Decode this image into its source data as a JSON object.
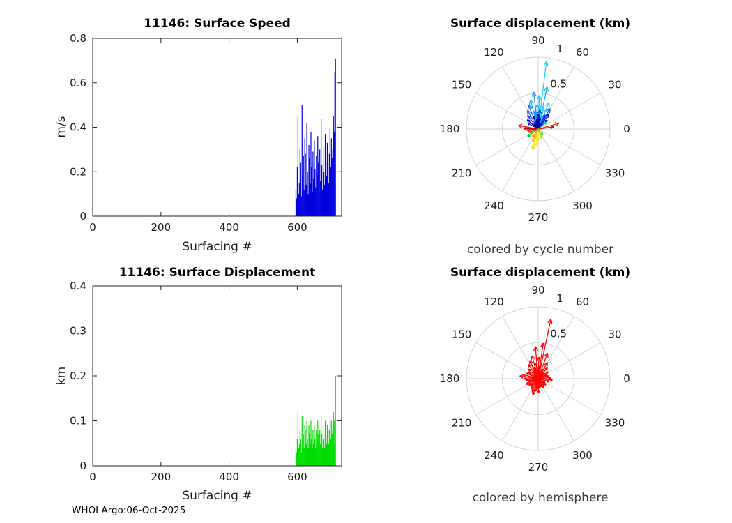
{
  "footer_text": "WHOI Argo:06-Oct-2025",
  "chart_data": [
    {
      "id": "speed",
      "type": "bar",
      "title": "11146: Surface Speed",
      "xlabel": "Surfacing #",
      "ylabel": "m/s",
      "xlim": [
        0,
        730
      ],
      "ylim": [
        0,
        0.8
      ],
      "xticks": [
        0,
        200,
        400,
        600
      ],
      "yticks": [
        0,
        0.2,
        0.4,
        0.6,
        0.8
      ],
      "grid": false,
      "bar_color": "#0000e0",
      "x": [
        596,
        598,
        600,
        602,
        604,
        606,
        608,
        610,
        612,
        614,
        616,
        618,
        620,
        622,
        624,
        626,
        628,
        630,
        632,
        634,
        636,
        638,
        640,
        642,
        644,
        646,
        648,
        650,
        652,
        654,
        656,
        658,
        660,
        662,
        664,
        666,
        668,
        670,
        672,
        674,
        676,
        678,
        680,
        682,
        684,
        686,
        688,
        690,
        692,
        694,
        696,
        698,
        700,
        702,
        704,
        706,
        708,
        710,
        712
      ],
      "values": [
        0.12,
        0.08,
        0.22,
        0.45,
        0.1,
        0.15,
        0.3,
        0.24,
        0.09,
        0.5,
        0.18,
        0.27,
        0.12,
        0.35,
        0.28,
        0.14,
        0.42,
        0.2,
        0.1,
        0.32,
        0.26,
        0.15,
        0.38,
        0.22,
        0.11,
        0.29,
        0.17,
        0.34,
        0.21,
        0.13,
        0.27,
        0.19,
        0.36,
        0.24,
        0.1,
        0.3,
        0.16,
        0.44,
        0.23,
        0.12,
        0.31,
        0.2,
        0.14,
        0.37,
        0.25,
        0.18,
        0.33,
        0.21,
        0.15,
        0.28,
        0.4,
        0.22,
        0.35,
        0.26,
        0.3,
        0.45,
        0.38,
        0.65,
        0.71
      ]
    },
    {
      "id": "disp",
      "type": "bar",
      "title": "11146: Surface Displacement",
      "xlabel": "Surfacing #",
      "ylabel": "km",
      "xlim": [
        0,
        730
      ],
      "ylim": [
        0,
        0.4
      ],
      "xticks": [
        0,
        200,
        400,
        600
      ],
      "yticks": [
        0,
        0.1,
        0.2,
        0.3,
        0.4
      ],
      "grid": false,
      "bar_color": "#00dd00",
      "x": [
        596,
        598,
        600,
        602,
        604,
        606,
        608,
        610,
        612,
        614,
        616,
        618,
        620,
        622,
        624,
        626,
        628,
        630,
        632,
        634,
        636,
        638,
        640,
        642,
        644,
        646,
        648,
        650,
        652,
        654,
        656,
        658,
        660,
        662,
        664,
        666,
        668,
        670,
        672,
        674,
        676,
        678,
        680,
        682,
        684,
        686,
        688,
        690,
        692,
        694,
        696,
        698,
        700,
        702,
        704,
        706,
        708,
        710,
        712
      ],
      "values": [
        0.04,
        0.03,
        0.06,
        0.12,
        0.04,
        0.05,
        0.08,
        0.06,
        0.03,
        0.11,
        0.05,
        0.07,
        0.04,
        0.09,
        0.08,
        0.05,
        0.1,
        0.06,
        0.04,
        0.09,
        0.07,
        0.05,
        0.1,
        0.06,
        0.04,
        0.08,
        0.05,
        0.09,
        0.06,
        0.04,
        0.08,
        0.06,
        0.1,
        0.07,
        0.03,
        0.08,
        0.05,
        0.11,
        0.07,
        0.04,
        0.09,
        0.06,
        0.04,
        0.1,
        0.07,
        0.05,
        0.09,
        0.06,
        0.05,
        0.08,
        0.11,
        0.06,
        0.1,
        0.07,
        0.08,
        0.12,
        0.1,
        0.05,
        0.2
      ]
    },
    {
      "id": "polar_cycle",
      "type": "polar_quiver",
      "title": "Surface displacement (km)",
      "caption": "colored by cycle number",
      "thetaticks": [
        0,
        30,
        60,
        90,
        120,
        150,
        180,
        210,
        240,
        270,
        300,
        330
      ],
      "rticks": [
        0.5,
        1
      ],
      "rlim": [
        0,
        1
      ],
      "colormap": "jet",
      "arrows": [
        [
          83,
          0.95,
          "#29c8ff"
        ],
        [
          78,
          0.6,
          "#00b4f5"
        ],
        [
          97,
          0.52,
          "#1e90ff"
        ],
        [
          88,
          0.47,
          "#00d0ff"
        ],
        [
          105,
          0.42,
          "#2ba9ff"
        ],
        [
          68,
          0.4,
          "#00e4ff"
        ],
        [
          112,
          0.36,
          "#1566f0"
        ],
        [
          60,
          0.33,
          "#0f52ff"
        ],
        [
          93,
          0.34,
          "#00bfff"
        ],
        [
          120,
          0.3,
          "#1e6fff"
        ],
        [
          75,
          0.31,
          "#38d0ff"
        ],
        [
          85,
          0.27,
          "#0040ff"
        ],
        [
          100,
          0.26,
          "#00a0ff"
        ],
        [
          55,
          0.25,
          "#0000e0"
        ],
        [
          128,
          0.24,
          "#2020ff"
        ],
        [
          140,
          0.2,
          "#0000c0"
        ],
        [
          65,
          0.22,
          "#0018ff"
        ],
        [
          90,
          0.21,
          "#000090"
        ],
        [
          110,
          0.19,
          "#0000b0"
        ],
        [
          45,
          0.18,
          "#0000ff"
        ],
        [
          150,
          0.17,
          "#3300f0"
        ],
        [
          80,
          0.16,
          "#000080"
        ],
        [
          95,
          0.15,
          "#0000a0"
        ],
        [
          85,
          0.1,
          "#000080"
        ],
        [
          96,
          0.08,
          "#000090"
        ],
        [
          74,
          0.09,
          "#0000a0"
        ],
        [
          101,
          0.12,
          "#0000c0"
        ],
        [
          115,
          0.1,
          "#0010ff"
        ],
        [
          131,
          0.09,
          "#000080"
        ],
        [
          15,
          0.3,
          "#ff2a00"
        ],
        [
          8,
          0.22,
          "#e00000"
        ],
        [
          170,
          0.28,
          "#ff0000"
        ],
        [
          178,
          0.2,
          "#cc0000"
        ],
        [
          186,
          0.16,
          "#b00000"
        ],
        [
          200,
          0.14,
          "#ff4400"
        ],
        [
          255,
          0.3,
          "#ffd400"
        ],
        [
          262,
          0.24,
          "#ffec00"
        ],
        [
          248,
          0.2,
          "#ffc000"
        ],
        [
          270,
          0.16,
          "#ffe100"
        ],
        [
          235,
          0.14,
          "#ff9400"
        ],
        [
          215,
          0.18,
          "#00c000"
        ],
        [
          40,
          0.15,
          "#00e070"
        ],
        [
          290,
          0.14,
          "#aadd00"
        ],
        [
          305,
          0.11,
          "#60d000"
        ]
      ]
    },
    {
      "id": "polar_hemi",
      "type": "polar_quiver",
      "title": "Surface displacement (km)",
      "caption": "colored by hemisphere",
      "thetaticks": [
        0,
        30,
        60,
        90,
        120,
        150,
        180,
        210,
        240,
        270,
        300,
        330
      ],
      "rticks": [
        0.5,
        1
      ],
      "rlim": [
        0,
        1
      ],
      "arrow_color": "#ff0000",
      "arrows": [
        [
          78,
          0.85
        ],
        [
          82,
          0.5
        ],
        [
          95,
          0.45
        ],
        [
          70,
          0.38
        ],
        [
          105,
          0.33
        ],
        [
          88,
          0.3
        ],
        [
          115,
          0.28
        ],
        [
          60,
          0.26
        ],
        [
          125,
          0.24
        ],
        [
          98,
          0.22
        ],
        [
          50,
          0.2
        ],
        [
          135,
          0.19
        ],
        [
          85,
          0.18
        ],
        [
          108,
          0.17
        ],
        [
          145,
          0.16
        ],
        [
          65,
          0.15
        ],
        [
          92,
          0.14
        ],
        [
          120,
          0.13
        ],
        [
          155,
          0.18
        ],
        [
          165,
          0.22
        ],
        [
          172,
          0.26
        ],
        [
          180,
          0.2
        ],
        [
          188,
          0.17
        ],
        [
          196,
          0.15
        ],
        [
          205,
          0.19
        ],
        [
          215,
          0.16
        ],
        [
          225,
          0.14
        ],
        [
          235,
          0.17
        ],
        [
          245,
          0.2
        ],
        [
          252,
          0.24
        ],
        [
          258,
          0.18
        ],
        [
          265,
          0.15
        ],
        [
          272,
          0.2
        ],
        [
          280,
          0.14
        ],
        [
          290,
          0.12
        ],
        [
          300,
          0.15
        ],
        [
          310,
          0.12
        ],
        [
          320,
          0.14
        ],
        [
          330,
          0.11
        ],
        [
          345,
          0.16
        ],
        [
          355,
          0.2
        ],
        [
          5,
          0.18
        ],
        [
          15,
          0.15
        ],
        [
          25,
          0.13
        ],
        [
          35,
          0.17
        ],
        [
          42,
          0.12
        ]
      ]
    }
  ]
}
